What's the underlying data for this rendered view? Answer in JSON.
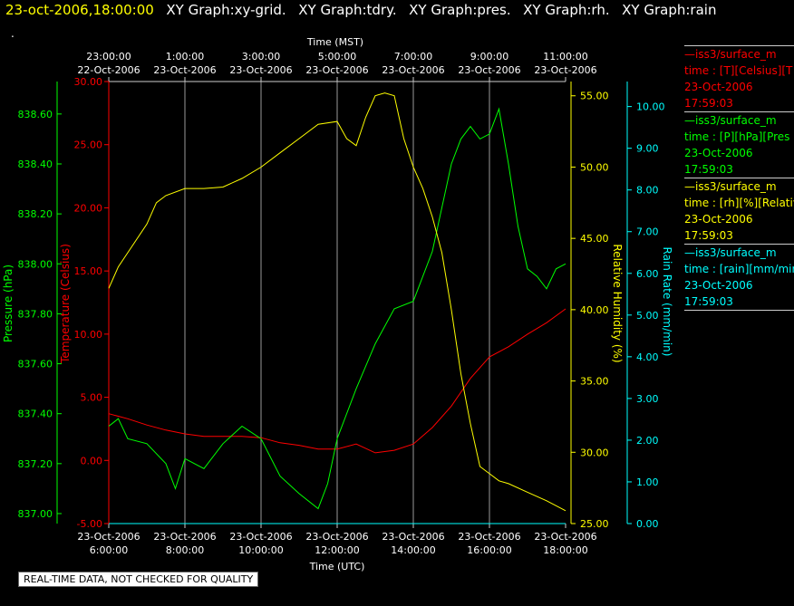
{
  "header": {
    "datetime": "23-oct-2006,18:00:00",
    "graphs": [
      "XY Graph:xy-grid.",
      "XY Graph:tdry.",
      "XY Graph:pres.",
      "XY Graph:rh.",
      "XY Graph:rain"
    ]
  },
  "dot": ".",
  "qc_notice": "REAL-TIME DATA, NOT CHECKED FOR QUALITY",
  "legend": [
    {
      "title": "—iss3/surface_m",
      "units": "time : [T][Celsius][T",
      "date": "23-Oct-2006",
      "time": "17:59:03",
      "color": "#ff0000"
    },
    {
      "title": "—iss3/surface_m",
      "units": "time : [P][hPa][Pres",
      "date": "23-Oct-2006",
      "time": "17:59:03",
      "color": "#00ff00"
    },
    {
      "title": "—iss3/surface_m",
      "units": "time : [rh][%][Relativ",
      "date": "23-Oct-2006",
      "time": "17:59:03",
      "color": "#ffff00"
    },
    {
      "title": "—iss3/surface_m",
      "units": "time : [rain][mm/mir",
      "date": "23-Oct-2006",
      "time": "17:59:03",
      "color": "#00ffff"
    }
  ],
  "chart_data": {
    "type": "line",
    "x_top_title": "Time (MST)",
    "x_bottom_title": "Time (UTC)",
    "x_range_utc_hours": [
      6,
      18
    ],
    "top_ticks": [
      {
        "date": "22-Oct-2006",
        "time": "23:00:00"
      },
      {
        "date": "23-Oct-2006",
        "time": "1:00:00"
      },
      {
        "date": "23-Oct-2006",
        "time": "3:00:00"
      },
      {
        "date": "23-Oct-2006",
        "time": "5:00:00"
      },
      {
        "date": "23-Oct-2006",
        "time": "7:00:00"
      },
      {
        "date": "23-Oct-2006",
        "time": "9:00:00"
      },
      {
        "date": "23-Oct-2006",
        "time": "11:00:00"
      }
    ],
    "bottom_ticks": [
      {
        "date": "23-Oct-2006",
        "time": "6:00:00"
      },
      {
        "date": "23-Oct-2006",
        "time": "8:00:00"
      },
      {
        "date": "23-Oct-2006",
        "time": "10:00:00"
      },
      {
        "date": "23-Oct-2006",
        "time": "12:00:00"
      },
      {
        "date": "23-Oct-2006",
        "time": "14:00:00"
      },
      {
        "date": "23-Oct-2006",
        "time": "16:00:00"
      },
      {
        "date": "23-Oct-2006",
        "time": "18:00:00"
      }
    ],
    "axes": {
      "pressure": {
        "label": "Pressure (hPa)",
        "color": "#00ff00",
        "ylim": [
          836.96,
          838.73
        ],
        "ticks": [
          "837.00",
          "837.20",
          "837.40",
          "837.60",
          "837.80",
          "838.00",
          "838.20",
          "838.40",
          "838.60"
        ]
      },
      "temperature": {
        "label": "Temperature (Celsius)",
        "color": "#ff0000",
        "ylim": [
          -5,
          30
        ],
        "ticks": [
          "-5.00",
          "0.00",
          "5.00",
          "10.00",
          "15.00",
          "20.00",
          "25.00",
          "30.00"
        ]
      },
      "humidity": {
        "label": "Relative Humidity (%)",
        "color": "#ffff00",
        "ylim": [
          25,
          56
        ],
        "ticks": [
          "25.00",
          "30.00",
          "35.00",
          "40.00",
          "45.00",
          "50.00",
          "55.00"
        ]
      },
      "rain": {
        "label": "Rain Rate (mm/min)",
        "color": "#00ffff",
        "ylim": [
          0,
          10.6
        ],
        "ticks": [
          "0.00",
          "1.00",
          "2.00",
          "3.00",
          "4.00",
          "5.00",
          "6.00",
          "7.00",
          "8.00",
          "9.00",
          "10.00"
        ]
      }
    },
    "series": [
      {
        "axis": "temperature",
        "color": "#ff0000",
        "x": [
          6.0,
          6.5,
          7.0,
          7.5,
          8.0,
          8.5,
          9.0,
          9.5,
          10.0,
          10.5,
          11.0,
          11.5,
          12.0,
          12.5,
          13.0,
          13.5,
          14.0,
          14.5,
          15.0,
          15.5,
          16.0,
          16.5,
          17.0,
          17.5,
          18.0
        ],
        "y": [
          3.7,
          3.3,
          2.8,
          2.4,
          2.1,
          1.9,
          1.9,
          1.9,
          1.8,
          1.4,
          1.2,
          0.9,
          0.9,
          1.3,
          0.6,
          0.8,
          1.3,
          2.6,
          4.3,
          6.5,
          8.2,
          9.0,
          10.0,
          10.9,
          12.0
        ]
      },
      {
        "axis": "pressure",
        "color": "#00ff00",
        "x": [
          6.0,
          6.25,
          6.5,
          7.0,
          7.5,
          7.75,
          8.0,
          8.5,
          9.0,
          9.5,
          10.0,
          10.5,
          11.0,
          11.5,
          11.75,
          12.0,
          12.5,
          13.0,
          13.5,
          14.0,
          14.5,
          15.0,
          15.25,
          15.5,
          15.75,
          16.0,
          16.25,
          16.5,
          16.75,
          17.0,
          17.25,
          17.5,
          17.75,
          18.0
        ],
        "y": [
          837.35,
          837.38,
          837.3,
          837.28,
          837.2,
          837.1,
          837.22,
          837.18,
          837.28,
          837.35,
          837.3,
          837.15,
          837.08,
          837.02,
          837.12,
          837.3,
          837.5,
          837.68,
          837.82,
          837.85,
          838.05,
          838.4,
          838.5,
          838.55,
          838.5,
          838.52,
          838.62,
          838.4,
          838.15,
          837.98,
          837.95,
          837.9,
          837.98,
          838.0
        ]
      },
      {
        "axis": "humidity",
        "color": "#ffff00",
        "x": [
          6.0,
          6.25,
          6.5,
          7.0,
          7.25,
          7.5,
          8.0,
          8.5,
          9.0,
          9.5,
          10.0,
          10.5,
          11.0,
          11.25,
          11.5,
          12.0,
          12.25,
          12.5,
          12.75,
          13.0,
          13.25,
          13.5,
          13.75,
          14.0,
          14.25,
          14.5,
          14.75,
          15.0,
          15.25,
          15.5,
          15.75,
          16.0,
          16.25,
          16.5,
          17.0,
          17.5,
          18.0
        ],
        "y": [
          41.5,
          43.0,
          44.0,
          46.0,
          47.5,
          48.0,
          48.5,
          48.5,
          48.6,
          49.2,
          50.0,
          51.0,
          52.0,
          52.5,
          53.0,
          53.2,
          52.0,
          51.5,
          53.5,
          55.0,
          55.2,
          55.0,
          52.0,
          50.0,
          48.5,
          46.5,
          44.0,
          40.0,
          35.5,
          32.0,
          29.0,
          28.5,
          28.0,
          27.8,
          27.2,
          26.6,
          25.9
        ]
      },
      {
        "axis": "rain",
        "color": "#00ffff",
        "x": [
          6.0,
          18.0
        ],
        "y": [
          0.0,
          0.0
        ]
      }
    ]
  }
}
